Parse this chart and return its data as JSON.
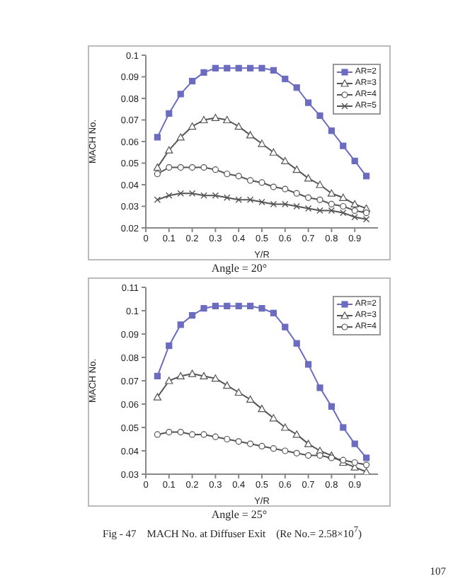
{
  "chart_data": [
    {
      "type": "line",
      "xlabel": "Y/R",
      "ylabel": "MACH No.",
      "x": [
        0.05,
        0.1,
        0.15,
        0.2,
        0.25,
        0.3,
        0.35,
        0.4,
        0.45,
        0.5,
        0.55,
        0.6,
        0.65,
        0.7,
        0.75,
        0.8,
        0.85,
        0.9,
        0.95
      ],
      "xlim": [
        0,
        1
      ],
      "xticks": [
        0,
        0.1,
        0.2,
        0.3,
        0.4,
        0.5,
        0.6,
        0.7,
        0.8,
        0.9
      ],
      "ylim": [
        0.02,
        0.1
      ],
      "yticks": [
        0.02,
        0.03,
        0.04,
        0.05,
        0.06,
        0.07,
        0.08,
        0.09,
        0.1
      ],
      "grid": false,
      "legend": "top right",
      "annotations": [
        "Angle = 20°"
      ],
      "series": [
        {
          "name": "AR=2",
          "color": "#6b6bc0",
          "marker": "square",
          "values": [
            0.062,
            0.073,
            0.082,
            0.088,
            0.092,
            0.094,
            0.094,
            0.094,
            0.094,
            0.094,
            0.093,
            0.089,
            0.085,
            0.078,
            0.072,
            0.065,
            0.058,
            0.051,
            0.044
          ]
        },
        {
          "name": "AR=3",
          "color": "#555555",
          "marker": "triangle",
          "values": [
            0.048,
            0.056,
            0.062,
            0.067,
            0.07,
            0.071,
            0.07,
            0.067,
            0.063,
            0.059,
            0.055,
            0.051,
            0.047,
            0.043,
            0.04,
            0.036,
            0.034,
            0.031,
            0.029
          ]
        },
        {
          "name": "AR=4",
          "color": "#555555",
          "marker": "circle",
          "values": [
            0.045,
            0.048,
            0.048,
            0.048,
            0.048,
            0.047,
            0.045,
            0.044,
            0.042,
            0.041,
            0.039,
            0.038,
            0.036,
            0.034,
            0.033,
            0.031,
            0.03,
            0.028,
            0.027
          ]
        },
        {
          "name": "AR=5",
          "color": "#555555",
          "marker": "cross",
          "values": [
            0.033,
            0.035,
            0.036,
            0.036,
            0.035,
            0.035,
            0.034,
            0.033,
            0.033,
            0.032,
            0.031,
            0.031,
            0.03,
            0.029,
            0.028,
            0.028,
            0.027,
            0.025,
            0.024
          ]
        }
      ]
    },
    {
      "type": "line",
      "xlabel": "Y/R",
      "ylabel": "MACH No.",
      "x": [
        0.05,
        0.1,
        0.15,
        0.2,
        0.25,
        0.3,
        0.35,
        0.4,
        0.45,
        0.5,
        0.55,
        0.6,
        0.65,
        0.7,
        0.75,
        0.8,
        0.85,
        0.9,
        0.95
      ],
      "xlim": [
        0,
        1
      ],
      "xticks": [
        0,
        0.1,
        0.2,
        0.3,
        0.4,
        0.5,
        0.6,
        0.7,
        0.8,
        0.9
      ],
      "ylim": [
        0.03,
        0.11
      ],
      "yticks": [
        0.03,
        0.04,
        0.05,
        0.06,
        0.07,
        0.08,
        0.09,
        0.1,
        0.11
      ],
      "grid": false,
      "legend": "top right",
      "annotations": [
        "Angle = 25°",
        "Fig - 47    MACH No. at Diffuser Exit    (Re No.= 2.58×10$^{7}$)",
        "107"
      ],
      "series": [
        {
          "name": "AR=2",
          "color": "#6b6bc0",
          "marker": "square",
          "values": [
            0.072,
            0.085,
            0.094,
            0.098,
            0.101,
            0.102,
            0.102,
            0.102,
            0.102,
            0.101,
            0.099,
            0.093,
            0.086,
            0.077,
            0.067,
            0.059,
            0.05,
            0.043,
            0.037
          ]
        },
        {
          "name": "AR=3",
          "color": "#555555",
          "marker": "triangle",
          "values": [
            0.063,
            0.07,
            0.072,
            0.073,
            0.072,
            0.071,
            0.068,
            0.065,
            0.062,
            0.058,
            0.054,
            0.05,
            0.047,
            0.043,
            0.04,
            0.038,
            0.035,
            0.033,
            0.031
          ]
        },
        {
          "name": "AR=4",
          "color": "#555555",
          "marker": "circle",
          "values": [
            0.047,
            0.048,
            0.048,
            0.047,
            0.047,
            0.046,
            0.045,
            0.044,
            0.043,
            0.042,
            0.041,
            0.04,
            0.039,
            0.038,
            0.038,
            0.037,
            0.036,
            0.035,
            0.034
          ]
        }
      ]
    }
  ]
}
